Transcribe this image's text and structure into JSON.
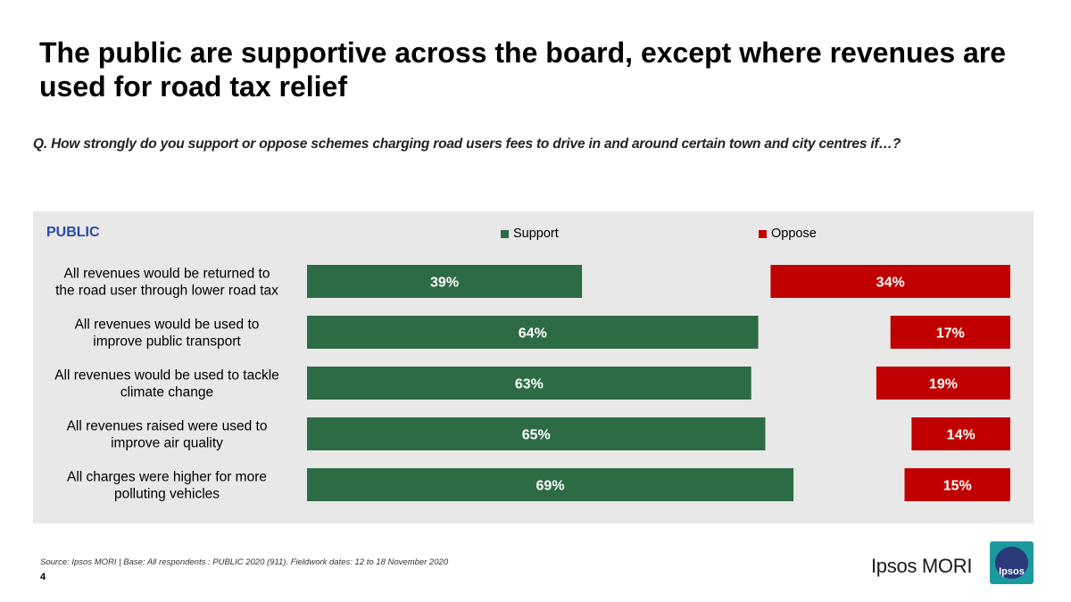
{
  "title": "The public are supportive across the board, except where revenues are used for road tax relief",
  "question": "Q. How strongly do you support or oppose schemes charging road users fees to drive in and around certain town and city centres if…?",
  "panel_label": "PUBLIC",
  "source": "Source: Ipsos MORI | Base: All respondents : PUBLIC 2020 (911). Fieldwork dates: 12 to 18 November 2020",
  "page_number": "4",
  "brand": {
    "name": "Ipsos MORI",
    "logo_text": "Ipsos"
  },
  "colors": {
    "support": "#2d6b45",
    "oppose": "#c00000",
    "panel": "#e8e8e8"
  },
  "chart_data": {
    "type": "bar",
    "orientation": "horizontal",
    "stacked": false,
    "legend_position": "top",
    "categories": [
      [
        "All revenues would be returned to",
        "the road user through lower road tax"
      ],
      [
        "All revenues would be used to",
        "improve public transport"
      ],
      [
        "All revenues would be used to tackle",
        "climate change"
      ],
      [
        "All revenues raised were used to",
        "improve air quality"
      ],
      [
        "All charges were higher for more",
        "polluting vehicles"
      ]
    ],
    "series": [
      {
        "name": "Support",
        "values": [
          39,
          64,
          63,
          65,
          69
        ],
        "labels": [
          "39%",
          "64%",
          "63%",
          "65%",
          "69%"
        ]
      },
      {
        "name": "Oppose",
        "values": [
          34,
          17,
          19,
          14,
          15
        ],
        "labels": [
          "34%",
          "17%",
          "19%",
          "14%",
          "15%"
        ]
      }
    ],
    "unit": "%"
  }
}
